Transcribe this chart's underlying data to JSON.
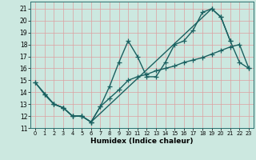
{
  "xlabel": "Humidex (Indice chaleur)",
  "xlim": [
    -0.5,
    23.5
  ],
  "ylim": [
    11,
    21.6
  ],
  "yticks": [
    11,
    12,
    13,
    14,
    15,
    16,
    17,
    18,
    19,
    20,
    21
  ],
  "xticks": [
    0,
    1,
    2,
    3,
    4,
    5,
    6,
    7,
    8,
    9,
    10,
    11,
    12,
    13,
    14,
    15,
    16,
    17,
    18,
    19,
    20,
    21,
    22,
    23
  ],
  "background_color": "#cce8e0",
  "grid_color": "#dda0a0",
  "line_color": "#1a6060",
  "line1_x": [
    0,
    1,
    2,
    3,
    4,
    5,
    6,
    7,
    8,
    9,
    10,
    11,
    12,
    13,
    14,
    15,
    16,
    17,
    18,
    19,
    20,
    21
  ],
  "line1_y": [
    14.8,
    13.8,
    13.0,
    12.7,
    12.0,
    12.0,
    11.5,
    12.8,
    14.5,
    16.5,
    18.3,
    17.0,
    15.3,
    15.3,
    16.5,
    18.0,
    18.3,
    19.2,
    20.7,
    21.0,
    20.3,
    18.3
  ],
  "line2_x": [
    0,
    2,
    3,
    4,
    5,
    6,
    7,
    8,
    9,
    10,
    11,
    12,
    13,
    14,
    15,
    16,
    17,
    18,
    19,
    20,
    21,
    22,
    23
  ],
  "line2_y": [
    14.8,
    13.0,
    12.7,
    12.0,
    12.0,
    11.5,
    12.8,
    13.5,
    14.2,
    15.0,
    15.3,
    15.5,
    15.8,
    16.0,
    16.2,
    16.5,
    16.7,
    16.9,
    17.2,
    17.5,
    17.8,
    18.0,
    16.0
  ],
  "line3_x": [
    1,
    2,
    3,
    4,
    5,
    6,
    19,
    20,
    21,
    22,
    23
  ],
  "line3_y": [
    13.8,
    13.0,
    12.7,
    12.0,
    12.0,
    11.5,
    21.0,
    20.3,
    18.3,
    16.5,
    16.0
  ],
  "marker": "+",
  "markersize": 4,
  "linewidth": 1.0
}
